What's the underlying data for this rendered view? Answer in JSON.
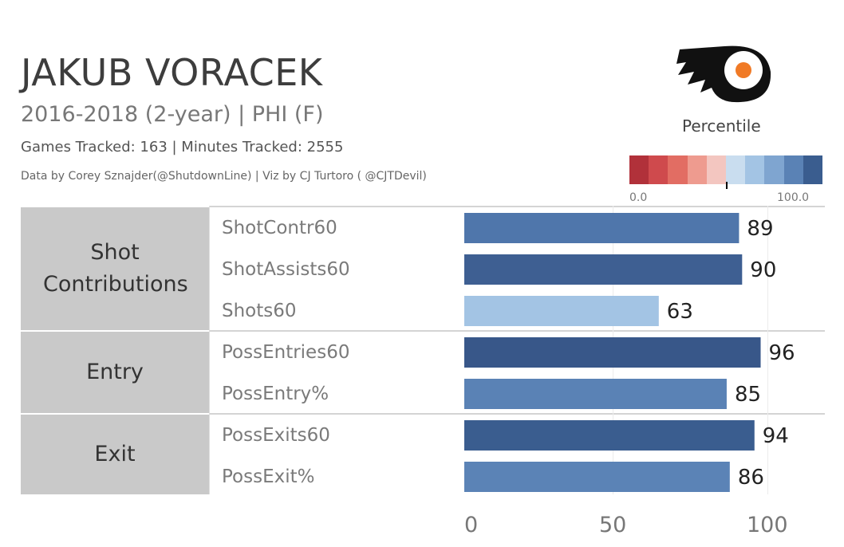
{
  "header": {
    "title": "JAKUB VORACEK",
    "subtitle": "2016-2018 (2-year) | PHI (F)",
    "meta": "Games Tracked: 163  | Minutes Tracked: 2555",
    "credit": "Data by Corey Sznajder(@ShutdownLine) | Viz by CJ Turtoro ( @CJTDevil)"
  },
  "logo": {
    "icon": "flyers-logo-icon",
    "colors": {
      "black": "#111111",
      "orange": "#f07a26",
      "white": "#ffffff"
    }
  },
  "legend": {
    "title": "Percentile",
    "min_label": "0.0",
    "max_label": "100.0",
    "marker_value": 50,
    "colors": [
      "#b1313a",
      "#cf4a4d",
      "#e26d63",
      "#ee9b8f",
      "#f3c6c0",
      "#c9ddef",
      "#a3c4e4",
      "#7fa5d0",
      "#5a82b5",
      "#3a5d8f"
    ]
  },
  "chart_data": {
    "type": "bar",
    "orientation": "horizontal",
    "xlim": [
      0,
      100
    ],
    "xticks": [
      0,
      50,
      100
    ],
    "groups": [
      {
        "label": "Shot Contributions",
        "rows": [
          0,
          1,
          2
        ]
      },
      {
        "label": "Entry",
        "rows": [
          3,
          4
        ]
      },
      {
        "label": "Exit",
        "rows": [
          5,
          6
        ]
      }
    ],
    "categories": [
      "ShotContr60",
      "ShotAssists60",
      "Shots60",
      "PossEntries60",
      "PossEntry%",
      "PossExits60",
      "PossExit%"
    ],
    "values": [
      89,
      90,
      63,
      96,
      85,
      94,
      86
    ],
    "value_labels": [
      "89",
      "90",
      "63",
      "96",
      "85",
      "94",
      "86"
    ],
    "bar_colors": [
      "#4f76ab",
      "#3e5f92",
      "#a3c4e4",
      "#385789",
      "#5a82b5",
      "#3a5d8f",
      "#5b83b6"
    ]
  }
}
